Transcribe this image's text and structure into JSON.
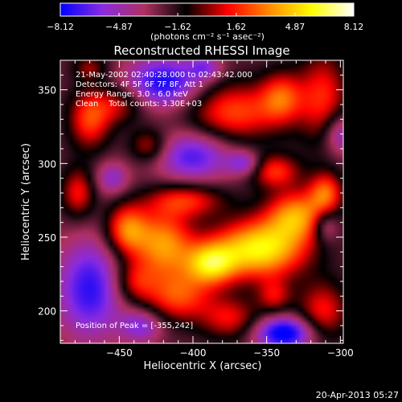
{
  "chart_data": {
    "type": "heatmap",
    "title": "Reconstructed RHESSI Image",
    "xlabel": "Heliocentric X (arcsec)",
    "ylabel": "Heliocentric Y (arcsec)",
    "xlim": [
      -490,
      -298
    ],
    "ylim": [
      178,
      370
    ],
    "x_ticks": [
      -450,
      -400,
      -350,
      -300
    ],
    "y_ticks": [
      200,
      250,
      300,
      350
    ],
    "colorbar": {
      "min": -8.12,
      "max": 8.12,
      "tick_values": [
        -8.12,
        -4.87,
        -1.62,
        1.62,
        4.87,
        8.12
      ],
      "tick_labels": [
        "−8.12",
        "−4.87",
        "−1.62",
        "1.62",
        "4.87",
        "8.12"
      ],
      "unit_label": "(photons cm⁻² s⁻¹ asec⁻²)",
      "colors": [
        "#0000ff",
        "#8a2be2",
        "#b03060",
        "#000000",
        "#ff0000",
        "#ff8c00",
        "#ffff00",
        "#ffffff"
      ]
    },
    "annotations": [
      "21-May-2002 02:40:28.000 to 02:43:42.000",
      "Detectors: 4F 5F 6F 7F 8F, Att 1",
      "Energy Range: 3.0 - 6.0 keV",
      "Clean    Total counts: 3.30E+03"
    ],
    "peak_label": "Position of Peak = [-355,242]",
    "peak": [
      -355,
      242
    ],
    "blobs": [
      {
        "x": -355,
        "y": 242,
        "sx": 22,
        "sy": 14,
        "a": 8.1
      },
      {
        "x": -388,
        "y": 232,
        "sx": 12,
        "sy": 10,
        "a": 6.5
      },
      {
        "x": -420,
        "y": 245,
        "sx": 14,
        "sy": 16,
        "a": 6.0
      },
      {
        "x": -445,
        "y": 255,
        "sx": 10,
        "sy": 12,
        "a": 5.5
      },
      {
        "x": -330,
        "y": 265,
        "sx": 14,
        "sy": 12,
        "a": 5.8
      },
      {
        "x": -310,
        "y": 280,
        "sx": 8,
        "sy": 10,
        "a": 4.8
      },
      {
        "x": -345,
        "y": 295,
        "sx": 12,
        "sy": 8,
        "a": 4.2
      },
      {
        "x": -405,
        "y": 275,
        "sx": 18,
        "sy": 8,
        "a": 4.0
      },
      {
        "x": -470,
        "y": 330,
        "sx": 10,
        "sy": 14,
        "a": 4.5
      },
      {
        "x": -478,
        "y": 280,
        "sx": 8,
        "sy": 12,
        "a": 3.8
      },
      {
        "x": -430,
        "y": 312,
        "sx": 9,
        "sy": 8,
        "a": 3.2
      },
      {
        "x": -450,
        "y": 340,
        "sx": 12,
        "sy": 9,
        "a": 3.0
      },
      {
        "x": -372,
        "y": 335,
        "sx": 22,
        "sy": 14,
        "a": 4.6
      },
      {
        "x": -340,
        "y": 345,
        "sx": 10,
        "sy": 12,
        "a": 4.2
      },
      {
        "x": -312,
        "y": 345,
        "sx": 12,
        "sy": 22,
        "a": 4.0
      },
      {
        "x": -410,
        "y": 210,
        "sx": 16,
        "sy": 12,
        "a": 4.5
      },
      {
        "x": -375,
        "y": 195,
        "sx": 14,
        "sy": 10,
        "a": 3.5
      },
      {
        "x": -312,
        "y": 200,
        "sx": 12,
        "sy": 14,
        "a": 3.8
      },
      {
        "x": -345,
        "y": 210,
        "sx": 8,
        "sy": 8,
        "a": 3.0
      },
      {
        "x": -440,
        "y": 220,
        "sx": 10,
        "sy": 10,
        "a": 3.2
      },
      {
        "x": -470,
        "y": 365,
        "sx": 8,
        "sy": 6,
        "a": 2.5
      },
      {
        "x": -420,
        "y": 355,
        "sx": 18,
        "sy": 12,
        "a": -5.5
      },
      {
        "x": -400,
        "y": 305,
        "sx": 18,
        "sy": 12,
        "a": -4.5
      },
      {
        "x": -470,
        "y": 215,
        "sx": 16,
        "sy": 24,
        "a": -5.0
      },
      {
        "x": -338,
        "y": 185,
        "sx": 14,
        "sy": 8,
        "a": -6.5
      },
      {
        "x": -300,
        "y": 320,
        "sx": 8,
        "sy": 10,
        "a": -3.5
      },
      {
        "x": -365,
        "y": 300,
        "sx": 8,
        "sy": 6,
        "a": -3.5
      },
      {
        "x": -310,
        "y": 258,
        "sx": 6,
        "sy": 8,
        "a": -3.0
      },
      {
        "x": -455,
        "y": 290,
        "sx": 8,
        "sy": 8,
        "a": -3.0
      },
      {
        "x": -435,
        "y": 190,
        "sx": 10,
        "sy": 8,
        "a": -3.5
      },
      {
        "x": -392,
        "y": 365,
        "sx": 8,
        "sy": 6,
        "a": -3.0
      }
    ]
  },
  "timestamp": "20-Apr-2013 05:27"
}
